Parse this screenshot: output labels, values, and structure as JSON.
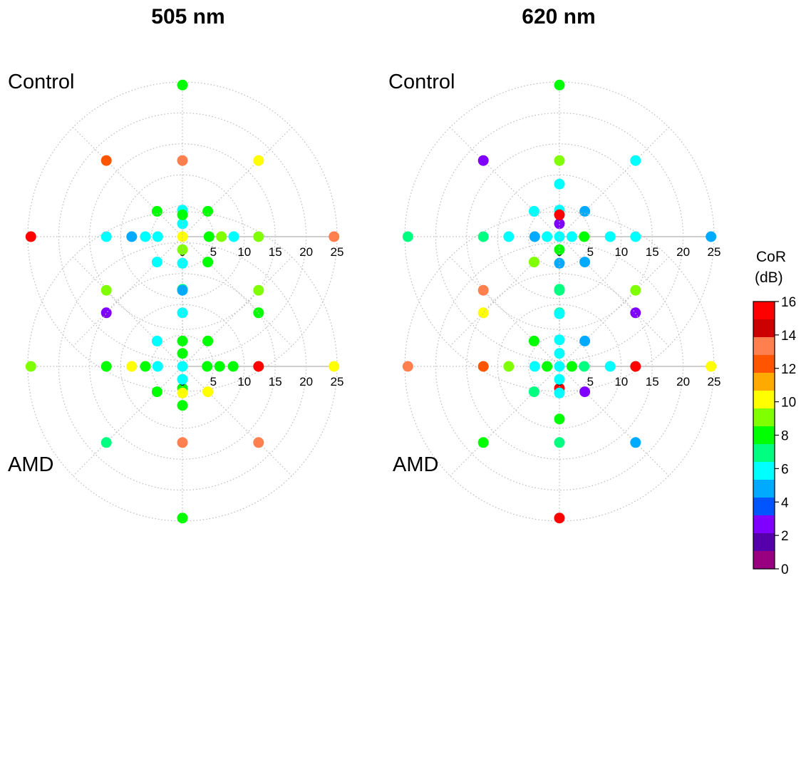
{
  "columns": [
    {
      "label": "505 nm"
    },
    {
      "label": "620 nm"
    }
  ],
  "colorbar": {
    "label_line1": "CoR",
    "label_line2": "(dB)",
    "ticks": [
      "16",
      "14",
      "12",
      "10",
      "8",
      "6",
      "4",
      "2",
      "0"
    ],
    "range": [
      0,
      16
    ],
    "colors": [
      "#ff0000",
      "#cc0000",
      "#ff7f4f",
      "#ff5500",
      "#ffaa00",
      "#ffff00",
      "#80ff00",
      "#00ff00",
      "#00ff80",
      "#00ffff",
      "#00aaff",
      "#0055ff",
      "#7f00ff",
      "#5500aa",
      "#99007f"
    ]
  },
  "chart_data": [
    {
      "type": "scatter",
      "coordinate_system": "polar",
      "title": "Control",
      "column": "505 nm",
      "r_ticks": [
        "0",
        "5",
        "10",
        "15",
        "20",
        "25"
      ],
      "rlim": [
        0,
        25
      ],
      "points": [
        {
          "r": 0,
          "theta": 0,
          "cor": 10
        },
        {
          "r": 2.1,
          "theta": 90,
          "cor": 6
        },
        {
          "r": 4.3,
          "theta": 90,
          "cor": 6
        },
        {
          "r": 12.3,
          "theta": 90,
          "cor": 13
        },
        {
          "r": 24.5,
          "theta": 90,
          "cor": 7.5
        },
        {
          "r": 2.1,
          "theta": 270,
          "cor": 9.5
        },
        {
          "r": 4.3,
          "theta": 270,
          "cor": 5.5
        },
        {
          "r": 8.5,
          "theta": 270,
          "cor": 7
        },
        {
          "r": 12.3,
          "theta": 270,
          "cor": 5.5
        },
        {
          "r": 24.5,
          "theta": 270,
          "cor": 8.5
        },
        {
          "r": 4.3,
          "theta": 0,
          "cor": 8.5
        },
        {
          "r": 6.3,
          "theta": 0,
          "cor": 9.5
        },
        {
          "r": 8.3,
          "theta": 0,
          "cor": 5.5
        },
        {
          "r": 12.3,
          "theta": 0,
          "cor": 9
        },
        {
          "r": 24.5,
          "theta": 0,
          "cor": 13.5
        },
        {
          "r": 4.0,
          "theta": 180,
          "cor": 6
        },
        {
          "r": 6.0,
          "theta": 180,
          "cor": 6
        },
        {
          "r": 8.2,
          "theta": 180,
          "cor": 4.5
        },
        {
          "r": 12.3,
          "theta": 180,
          "cor": 5.5
        },
        {
          "r": 24.5,
          "theta": 180,
          "cor": 15
        },
        {
          "r": 5.8,
          "theta": 45,
          "cor": 7.5
        },
        {
          "r": 17.4,
          "theta": 45,
          "cor": 10.5
        },
        {
          "r": 5.8,
          "theta": 135,
          "cor": 8.5
        },
        {
          "r": 17.4,
          "theta": 135,
          "cor": 12
        },
        {
          "r": 5.8,
          "theta": 225,
          "cor": 5.5
        },
        {
          "r": 17.4,
          "theta": 225,
          "cor": 2.5
        },
        {
          "r": 5.8,
          "theta": 315,
          "cor": 7.5
        },
        {
          "r": 17.4,
          "theta": 315,
          "cor": 8.5
        }
      ]
    },
    {
      "type": "scatter",
      "coordinate_system": "polar",
      "title": "Control",
      "column": "620 nm",
      "r_ticks": [
        "0",
        "5",
        "10",
        "15",
        "20",
        "25"
      ],
      "rlim": [
        0,
        25
      ],
      "points": [
        {
          "r": 0,
          "theta": 0,
          "cor": 5.5
        },
        {
          "r": 2.1,
          "theta": 90,
          "cor": 3
        },
        {
          "r": 4.3,
          "theta": 90,
          "cor": 5.5
        },
        {
          "r": 8.5,
          "theta": 90,
          "cor": 5.5
        },
        {
          "r": 12.3,
          "theta": 90,
          "cor": 9.5
        },
        {
          "r": 24.5,
          "theta": 90,
          "cor": 7.5
        },
        {
          "r": 2.1,
          "theta": 270,
          "cor": 7.5
        },
        {
          "r": 4.3,
          "theta": 270,
          "cor": 4.5
        },
        {
          "r": 8.5,
          "theta": 270,
          "cor": 7
        },
        {
          "r": 12.3,
          "theta": 270,
          "cor": 6.5
        },
        {
          "r": 24.5,
          "theta": 270,
          "cor": 15.5
        },
        {
          "r": 2.0,
          "theta": 0,
          "cor": 5.5
        },
        {
          "r": 4.0,
          "theta": 0,
          "cor": 7.5
        },
        {
          "r": 8.2,
          "theta": 0,
          "cor": 5.5
        },
        {
          "r": 12.3,
          "theta": 0,
          "cor": 6
        },
        {
          "r": 24.5,
          "theta": 0,
          "cor": 4.5
        },
        {
          "r": 2.0,
          "theta": 180,
          "cor": 6
        },
        {
          "r": 4.0,
          "theta": 180,
          "cor": 4.5
        },
        {
          "r": 8.2,
          "theta": 180,
          "cor": 5.5
        },
        {
          "r": 12.3,
          "theta": 180,
          "cor": 6.5
        },
        {
          "r": 24.5,
          "theta": 180,
          "cor": 6.5
        },
        {
          "r": 5.8,
          "theta": 45,
          "cor": 4.5
        },
        {
          "r": 17.4,
          "theta": 45,
          "cor": 6
        },
        {
          "r": 5.8,
          "theta": 135,
          "cor": 5.5
        },
        {
          "r": 17.4,
          "theta": 135,
          "cor": 2.5
        },
        {
          "r": 5.8,
          "theta": 225,
          "cor": 9.5
        },
        {
          "r": 17.4,
          "theta": 225,
          "cor": 10.5
        },
        {
          "r": 5.8,
          "theta": 315,
          "cor": 4.5
        },
        {
          "r": 17.4,
          "theta": 315,
          "cor": 2.5
        }
      ]
    },
    {
      "type": "scatter",
      "coordinate_system": "polar",
      "title": "AMD",
      "column": "505 nm",
      "r_ticks": [
        "0",
        "5",
        "10",
        "15",
        "20",
        "25"
      ],
      "rlim": [
        0,
        25
      ],
      "points": [
        {
          "r": 0,
          "theta": 0,
          "cor": 6
        },
        {
          "r": 2.1,
          "theta": 90,
          "cor": 8.5
        },
        {
          "r": 4.1,
          "theta": 90,
          "cor": 7.5
        },
        {
          "r": 12.3,
          "theta": 90,
          "cor": 4.5
        },
        {
          "r": 24.5,
          "theta": 90,
          "cor": 7.5
        },
        {
          "r": 2.1,
          "theta": 270,
          "cor": 5.5
        },
        {
          "r": 4.3,
          "theta": 270,
          "cor": 10.5
        },
        {
          "r": 6.3,
          "theta": 270,
          "cor": 8.5
        },
        {
          "r": 12.3,
          "theta": 270,
          "cor": 13.5
        },
        {
          "r": 24.5,
          "theta": 270,
          "cor": 8.5
        },
        {
          "r": 4.0,
          "theta": 0,
          "cor": 7.5
        },
        {
          "r": 6.0,
          "theta": 0,
          "cor": 7.5
        },
        {
          "r": 8.2,
          "theta": 0,
          "cor": 7.5
        },
        {
          "r": 12.3,
          "theta": 0,
          "cor": 15.5
        },
        {
          "r": 24.5,
          "theta": 0,
          "cor": 10.5
        },
        {
          "r": 4.0,
          "theta": 180,
          "cor": 5.5
        },
        {
          "r": 6.0,
          "theta": 180,
          "cor": 7.5
        },
        {
          "r": 8.2,
          "theta": 180,
          "cor": 10.5
        },
        {
          "r": 12.3,
          "theta": 180,
          "cor": 8.5
        },
        {
          "r": 24.5,
          "theta": 180,
          "cor": 9.5
        },
        {
          "r": 5.8,
          "theta": 45,
          "cor": 8.5
        },
        {
          "r": 17.4,
          "theta": 45,
          "cor": 9.5
        },
        {
          "r": 5.8,
          "theta": 135,
          "cor": 5.5
        },
        {
          "r": 17.4,
          "theta": 135,
          "cor": 9.5
        },
        {
          "r": 5.8,
          "theta": 225,
          "cor": 8.5
        },
        {
          "r": 17.4,
          "theta": 225,
          "cor": 6.5
        },
        {
          "r": 5.8,
          "theta": 315,
          "cor": 10.5
        },
        {
          "r": 17.4,
          "theta": 315,
          "cor": 13.5
        }
      ]
    },
    {
      "type": "scatter",
      "coordinate_system": "polar",
      "title": "AMD",
      "column": "620 nm",
      "r_ticks": [
        "0",
        "5",
        "10",
        "15",
        "20",
        "25"
      ],
      "rlim": [
        0,
        25
      ],
      "points": [
        {
          "r": 0,
          "theta": 0,
          "cor": 5.5
        },
        {
          "r": 2.1,
          "theta": 90,
          "cor": 5.5
        },
        {
          "r": 4.3,
          "theta": 90,
          "cor": 5.5
        },
        {
          "r": 8.5,
          "theta": 90,
          "cor": 5.5
        },
        {
          "r": 12.3,
          "theta": 90,
          "cor": 6.5
        },
        {
          "r": 24.5,
          "theta": 90,
          "cor": 15.5
        },
        {
          "r": 2.1,
          "theta": 270,
          "cor": 5.5
        },
        {
          "r": 4.3,
          "theta": 270,
          "cor": 5.5
        },
        {
          "r": 8.5,
          "theta": 270,
          "cor": 7.5
        },
        {
          "r": 12.3,
          "theta": 270,
          "cor": 6.5
        },
        {
          "r": 24.5,
          "theta": 270,
          "cor": 15.5
        },
        {
          "r": 2.0,
          "theta": 0,
          "cor": 8.5
        },
        {
          "r": 4.0,
          "theta": 0,
          "cor": 6.5
        },
        {
          "r": 8.2,
          "theta": 0,
          "cor": 5.5
        },
        {
          "r": 12.3,
          "theta": 0,
          "cor": 15.5
        },
        {
          "r": 24.5,
          "theta": 0,
          "cor": 10.5
        },
        {
          "r": 2.0,
          "theta": 180,
          "cor": 7.5
        },
        {
          "r": 4.0,
          "theta": 180,
          "cor": 5.5
        },
        {
          "r": 8.2,
          "theta": 180,
          "cor": 9.5
        },
        {
          "r": 12.3,
          "theta": 180,
          "cor": 12
        },
        {
          "r": 24.5,
          "theta": 180,
          "cor": 13.5
        },
        {
          "r": 5.8,
          "theta": 45,
          "cor": 4.5
        },
        {
          "r": 17.4,
          "theta": 45,
          "cor": 9.5
        },
        {
          "r": 5.8,
          "theta": 135,
          "cor": 7.5
        },
        {
          "r": 17.4,
          "theta": 135,
          "cor": 13.5
        },
        {
          "r": 5.8,
          "theta": 225,
          "cor": 6.5
        },
        {
          "r": 17.4,
          "theta": 225,
          "cor": 8.5
        },
        {
          "r": 5.8,
          "theta": 315,
          "cor": 2.5
        },
        {
          "r": 17.4,
          "theta": 315,
          "cor": 4.5
        }
      ]
    }
  ]
}
